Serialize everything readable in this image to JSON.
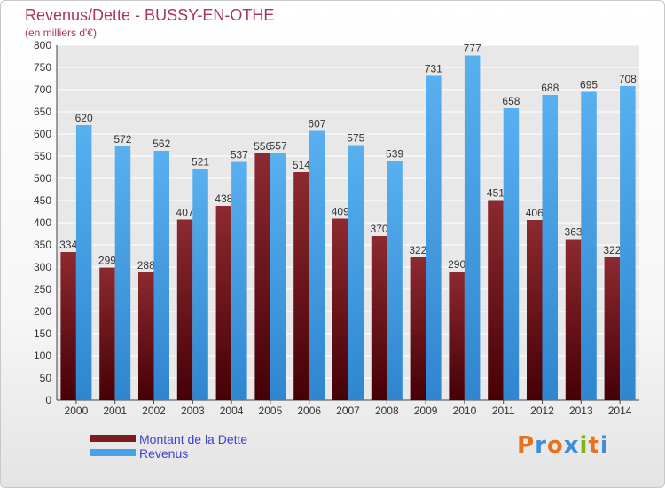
{
  "page": {
    "title": "Revenus/Dette - BUSSY-EN-OTHE",
    "subtitle": "(en milliers d'€)"
  },
  "legend": {
    "items": [
      {
        "label": "Montant de la Dette",
        "color": "#7a1c22"
      },
      {
        "label": "Revenus",
        "color": "#4aa3e6"
      }
    ]
  },
  "brand": {
    "logo_text": "Proxiti",
    "letter_colors": [
      "#e8711c",
      "#3c8ed6",
      "#e8711c",
      "#3c8ed6",
      "#79b51c",
      "#e8711c",
      "#3c8ed6"
    ]
  },
  "chart_data": {
    "type": "bar",
    "title": "Revenus/Dette - BUSSY-EN-OTHE",
    "subtitle": "(en milliers d'€)",
    "categories": [
      "2000",
      "2001",
      "2002",
      "2003",
      "2004",
      "2005",
      "2006",
      "2007",
      "2008",
      "2009",
      "2010",
      "2011",
      "2012",
      "2013",
      "2014"
    ],
    "series": [
      {
        "name": "Montant de la Dette",
        "color": "#7a1c22",
        "values": [
          334,
          299,
          288,
          407,
          438,
          556,
          514,
          409,
          370,
          322,
          290,
          451,
          406,
          363,
          322
        ]
      },
      {
        "name": "Revenus",
        "color": "#4aa3e6",
        "values": [
          620,
          572,
          562,
          521,
          537,
          557,
          607,
          575,
          539,
          731,
          777,
          658,
          688,
          695,
          708
        ]
      }
    ],
    "ylim": [
      0,
      800
    ],
    "ytick_step": 50,
    "grid": true,
    "legend_position": "bottom-left"
  }
}
